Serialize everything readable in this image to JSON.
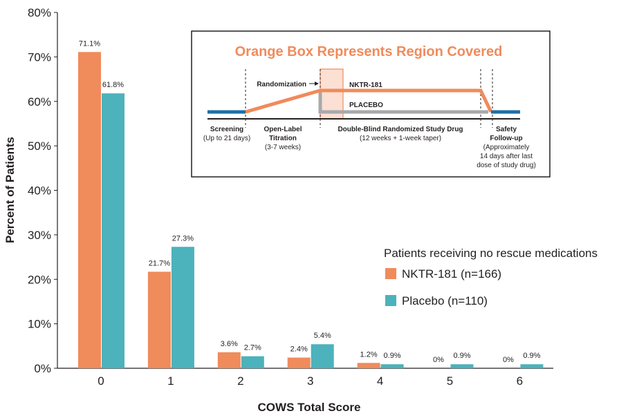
{
  "chart_data": {
    "type": "bar",
    "x_label": "COWS Total Score",
    "y_label": "Percent of Patients",
    "categories": [
      "0",
      "1",
      "2",
      "3",
      "4",
      "5",
      "6"
    ],
    "series": [
      {
        "name": "NKTR-181 (n=166)",
        "color": "#f08b5b",
        "values": [
          71.1,
          21.7,
          3.6,
          2.4,
          1.2,
          0,
          0
        ],
        "value_labels": [
          "71.1%",
          "21.7%",
          "3.6%",
          "2.4%",
          "1.2%",
          "0%",
          "0%"
        ]
      },
      {
        "name": "Placebo (n=110)",
        "color": "#4cb2bc",
        "values": [
          61.8,
          27.3,
          2.7,
          5.4,
          0.9,
          0.9,
          0.9
        ],
        "value_labels": [
          "61.8%",
          "27.3%",
          "2.7%",
          "5.4%",
          "0.9%",
          "0.9%",
          "0.9%"
        ]
      }
    ],
    "ylim": [
      0,
      80
    ],
    "yticks": [
      {
        "value": 0,
        "label": "0%"
      },
      {
        "value": 10,
        "label": "10%"
      },
      {
        "value": 20,
        "label": "20%"
      },
      {
        "value": 30,
        "label": "30%"
      },
      {
        "value": 40,
        "label": "40%"
      },
      {
        "value": 50,
        "label": "50%"
      },
      {
        "value": 60,
        "label": "60%"
      },
      {
        "value": 70,
        "label": "70%"
      },
      {
        "value": 80,
        "label": "80%"
      }
    ],
    "legend_title": "Patients receiving no rescue medications",
    "legend_position": "right",
    "inset": {
      "title": "Orange Box Represents Region Covered",
      "randomization": "Randomization",
      "nktr": "NKTR-181",
      "placebo": "PLACEBO",
      "screening": [
        "Screening",
        "(Up to 21 days)"
      ],
      "titration": [
        "Open-Label",
        "Titration",
        "(3-7 weeks)"
      ],
      "double_blind": [
        "Double-Blind Randomized Study Drug",
        "(12 weeks + 1-week taper)"
      ],
      "followup": [
        "Safety",
        "Follow-up",
        "(Approximately",
        "14 days after last",
        "dose of study drug)"
      ]
    }
  }
}
